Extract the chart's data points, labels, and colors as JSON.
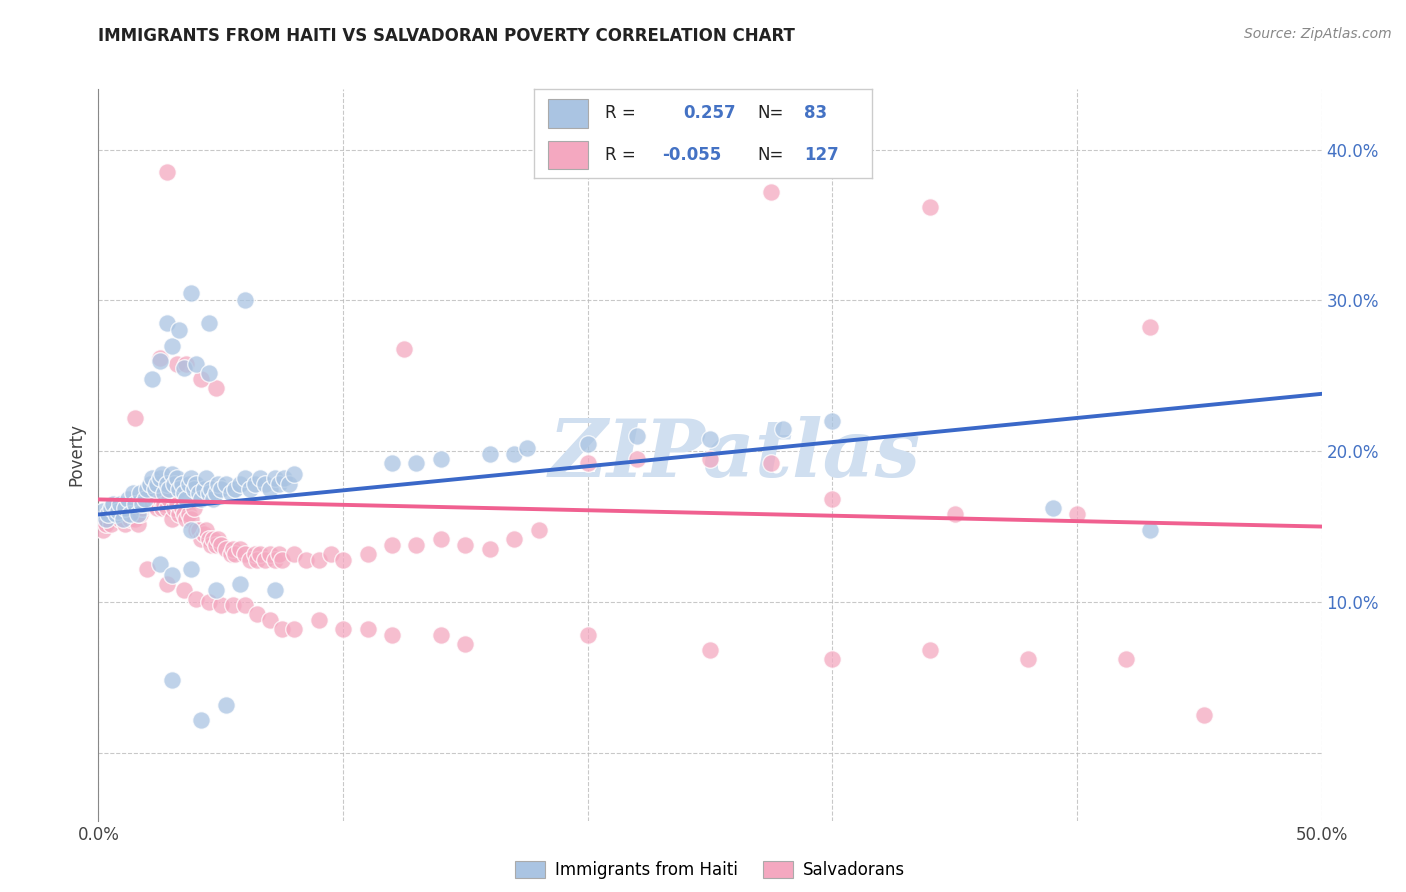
{
  "title": "IMMIGRANTS FROM HAITI VS SALVADORAN POVERTY CORRELATION CHART",
  "source": "Source: ZipAtlas.com",
  "ylabel": "Poverty",
  "xlim": [
    0.0,
    0.5
  ],
  "ylim": [
    -0.045,
    0.44
  ],
  "haiti_color": "#aac4e2",
  "salv_color": "#f4a8c0",
  "haiti_line_color": "#3a68c8",
  "salv_line_color": "#f06090",
  "watermark": "ZIPatlas",
  "watermark_color": "#d0dff0",
  "haiti_trendline": [
    [
      0.0,
      0.158
    ],
    [
      0.5,
      0.238
    ]
  ],
  "salv_trendline": [
    [
      0.0,
      0.168
    ],
    [
      0.5,
      0.15
    ]
  ],
  "haiti_points": [
    [
      0.002,
      0.16
    ],
    [
      0.003,
      0.155
    ],
    [
      0.004,
      0.158
    ],
    [
      0.005,
      0.162
    ],
    [
      0.006,
      0.165
    ],
    [
      0.007,
      0.158
    ],
    [
      0.008,
      0.16
    ],
    [
      0.009,
      0.165
    ],
    [
      0.01,
      0.155
    ],
    [
      0.011,
      0.162
    ],
    [
      0.012,
      0.168
    ],
    [
      0.013,
      0.158
    ],
    [
      0.014,
      0.172
    ],
    [
      0.015,
      0.165
    ],
    [
      0.016,
      0.158
    ],
    [
      0.017,
      0.172
    ],
    [
      0.018,
      0.165
    ],
    [
      0.019,
      0.168
    ],
    [
      0.02,
      0.175
    ],
    [
      0.021,
      0.178
    ],
    [
      0.022,
      0.182
    ],
    [
      0.023,
      0.175
    ],
    [
      0.024,
      0.178
    ],
    [
      0.025,
      0.182
    ],
    [
      0.026,
      0.185
    ],
    [
      0.027,
      0.172
    ],
    [
      0.028,
      0.178
    ],
    [
      0.029,
      0.175
    ],
    [
      0.03,
      0.185
    ],
    [
      0.031,
      0.178
    ],
    [
      0.032,
      0.182
    ],
    [
      0.033,
      0.175
    ],
    [
      0.034,
      0.178
    ],
    [
      0.035,
      0.172
    ],
    [
      0.036,
      0.168
    ],
    [
      0.037,
      0.178
    ],
    [
      0.038,
      0.182
    ],
    [
      0.039,
      0.175
    ],
    [
      0.04,
      0.178
    ],
    [
      0.041,
      0.172
    ],
    [
      0.042,
      0.168
    ],
    [
      0.043,
      0.175
    ],
    [
      0.044,
      0.182
    ],
    [
      0.045,
      0.172
    ],
    [
      0.046,
      0.175
    ],
    [
      0.047,
      0.168
    ],
    [
      0.048,
      0.172
    ],
    [
      0.049,
      0.178
    ],
    [
      0.05,
      0.175
    ],
    [
      0.052,
      0.178
    ],
    [
      0.054,
      0.172
    ],
    [
      0.056,
      0.175
    ],
    [
      0.058,
      0.178
    ],
    [
      0.06,
      0.182
    ],
    [
      0.062,
      0.175
    ],
    [
      0.064,
      0.178
    ],
    [
      0.066,
      0.182
    ],
    [
      0.068,
      0.178
    ],
    [
      0.07,
      0.175
    ],
    [
      0.072,
      0.182
    ],
    [
      0.074,
      0.178
    ],
    [
      0.076,
      0.182
    ],
    [
      0.078,
      0.178
    ],
    [
      0.08,
      0.185
    ],
    [
      0.025,
      0.26
    ],
    [
      0.03,
      0.27
    ],
    [
      0.035,
      0.255
    ],
    [
      0.04,
      0.258
    ],
    [
      0.045,
      0.252
    ],
    [
      0.022,
      0.248
    ],
    [
      0.028,
      0.285
    ],
    [
      0.033,
      0.28
    ],
    [
      0.045,
      0.285
    ],
    [
      0.038,
      0.305
    ],
    [
      0.06,
      0.3
    ],
    [
      0.12,
      0.192
    ],
    [
      0.13,
      0.192
    ],
    [
      0.14,
      0.195
    ],
    [
      0.16,
      0.198
    ],
    [
      0.17,
      0.198
    ],
    [
      0.175,
      0.202
    ],
    [
      0.2,
      0.205
    ],
    [
      0.22,
      0.21
    ],
    [
      0.25,
      0.208
    ],
    [
      0.28,
      0.215
    ],
    [
      0.3,
      0.22
    ],
    [
      0.39,
      0.162
    ],
    [
      0.43,
      0.148
    ],
    [
      0.025,
      0.125
    ],
    [
      0.03,
      0.118
    ],
    [
      0.038,
      0.122
    ],
    [
      0.048,
      0.108
    ],
    [
      0.058,
      0.112
    ],
    [
      0.072,
      0.108
    ],
    [
      0.03,
      0.048
    ],
    [
      0.042,
      0.022
    ],
    [
      0.052,
      0.032
    ],
    [
      0.038,
      0.148
    ]
  ],
  "salv_points": [
    [
      0.001,
      0.155
    ],
    [
      0.002,
      0.148
    ],
    [
      0.003,
      0.152
    ],
    [
      0.004,
      0.158
    ],
    [
      0.005,
      0.152
    ],
    [
      0.006,
      0.158
    ],
    [
      0.007,
      0.162
    ],
    [
      0.008,
      0.158
    ],
    [
      0.009,
      0.155
    ],
    [
      0.01,
      0.158
    ],
    [
      0.011,
      0.152
    ],
    [
      0.012,
      0.158
    ],
    [
      0.013,
      0.155
    ],
    [
      0.014,
      0.158
    ],
    [
      0.015,
      0.155
    ],
    [
      0.016,
      0.152
    ],
    [
      0.017,
      0.158
    ],
    [
      0.018,
      0.162
    ],
    [
      0.019,
      0.168
    ],
    [
      0.02,
      0.165
    ],
    [
      0.021,
      0.168
    ],
    [
      0.022,
      0.165
    ],
    [
      0.023,
      0.168
    ],
    [
      0.024,
      0.162
    ],
    [
      0.025,
      0.168
    ],
    [
      0.026,
      0.162
    ],
    [
      0.027,
      0.165
    ],
    [
      0.028,
      0.162
    ],
    [
      0.029,
      0.168
    ],
    [
      0.03,
      0.155
    ],
    [
      0.031,
      0.162
    ],
    [
      0.032,
      0.165
    ],
    [
      0.033,
      0.158
    ],
    [
      0.034,
      0.162
    ],
    [
      0.035,
      0.158
    ],
    [
      0.036,
      0.155
    ],
    [
      0.037,
      0.158
    ],
    [
      0.038,
      0.155
    ],
    [
      0.039,
      0.162
    ],
    [
      0.04,
      0.148
    ],
    [
      0.041,
      0.148
    ],
    [
      0.042,
      0.142
    ],
    [
      0.043,
      0.145
    ],
    [
      0.044,
      0.148
    ],
    [
      0.045,
      0.142
    ],
    [
      0.046,
      0.138
    ],
    [
      0.047,
      0.142
    ],
    [
      0.048,
      0.138
    ],
    [
      0.049,
      0.142
    ],
    [
      0.05,
      0.138
    ],
    [
      0.052,
      0.135
    ],
    [
      0.054,
      0.132
    ],
    [
      0.055,
      0.135
    ],
    [
      0.056,
      0.132
    ],
    [
      0.058,
      0.135
    ],
    [
      0.06,
      0.132
    ],
    [
      0.062,
      0.128
    ],
    [
      0.064,
      0.132
    ],
    [
      0.065,
      0.128
    ],
    [
      0.066,
      0.132
    ],
    [
      0.068,
      0.128
    ],
    [
      0.07,
      0.132
    ],
    [
      0.072,
      0.128
    ],
    [
      0.074,
      0.132
    ],
    [
      0.075,
      0.128
    ],
    [
      0.08,
      0.132
    ],
    [
      0.085,
      0.128
    ],
    [
      0.09,
      0.128
    ],
    [
      0.095,
      0.132
    ],
    [
      0.1,
      0.128
    ],
    [
      0.11,
      0.132
    ],
    [
      0.12,
      0.138
    ],
    [
      0.13,
      0.138
    ],
    [
      0.14,
      0.142
    ],
    [
      0.15,
      0.138
    ],
    [
      0.16,
      0.135
    ],
    [
      0.17,
      0.142
    ],
    [
      0.18,
      0.148
    ],
    [
      0.2,
      0.192
    ],
    [
      0.22,
      0.195
    ],
    [
      0.25,
      0.195
    ],
    [
      0.275,
      0.192
    ],
    [
      0.3,
      0.168
    ],
    [
      0.35,
      0.158
    ],
    [
      0.4,
      0.158
    ],
    [
      0.015,
      0.222
    ],
    [
      0.025,
      0.262
    ],
    [
      0.032,
      0.258
    ],
    [
      0.036,
      0.258
    ],
    [
      0.042,
      0.248
    ],
    [
      0.048,
      0.242
    ],
    [
      0.125,
      0.268
    ],
    [
      0.02,
      0.122
    ],
    [
      0.028,
      0.112
    ],
    [
      0.035,
      0.108
    ],
    [
      0.04,
      0.102
    ],
    [
      0.045,
      0.1
    ],
    [
      0.05,
      0.098
    ],
    [
      0.055,
      0.098
    ],
    [
      0.06,
      0.098
    ],
    [
      0.065,
      0.092
    ],
    [
      0.07,
      0.088
    ],
    [
      0.075,
      0.082
    ],
    [
      0.08,
      0.082
    ],
    [
      0.09,
      0.088
    ],
    [
      0.1,
      0.082
    ],
    [
      0.11,
      0.082
    ],
    [
      0.12,
      0.078
    ],
    [
      0.14,
      0.078
    ],
    [
      0.15,
      0.072
    ],
    [
      0.2,
      0.078
    ],
    [
      0.25,
      0.068
    ],
    [
      0.3,
      0.062
    ],
    [
      0.34,
      0.068
    ],
    [
      0.38,
      0.062
    ],
    [
      0.42,
      0.062
    ],
    [
      0.028,
      0.385
    ],
    [
      0.275,
      0.372
    ],
    [
      0.34,
      0.362
    ],
    [
      0.43,
      0.282
    ],
    [
      0.452,
      0.025
    ]
  ]
}
